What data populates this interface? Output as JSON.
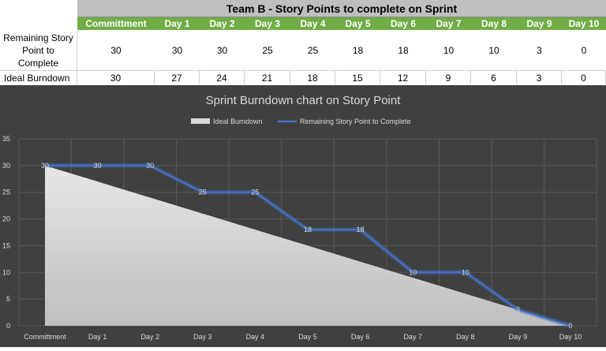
{
  "table": {
    "title": "Team B - Story Points to complete on Sprint",
    "headers": [
      "Committment",
      "Day 1",
      "Day 2",
      "Day 3",
      "Day 4",
      "Day 5",
      "Day 6",
      "Day 7",
      "Day 8",
      "Day 9",
      "Day 10"
    ],
    "rows": [
      {
        "label": "Remaining Story Point to Complete",
        "values": [
          "30",
          "30",
          "30",
          "25",
          "25",
          "18",
          "18",
          "10",
          "10",
          "3",
          "0"
        ]
      },
      {
        "label": "Ideal Burndown",
        "values": [
          "30",
          "27",
          "24",
          "21",
          "18",
          "15",
          "12",
          "9",
          "6",
          "3",
          "0"
        ]
      }
    ]
  },
  "chart_data": {
    "type": "line",
    "title": "Sprint Burndown chart on Story Point",
    "categories": [
      "Committment",
      "Day 1",
      "Day 2",
      "Day 3",
      "Day 4",
      "Day 5",
      "Day 6",
      "Day 7",
      "Day 8",
      "Day 9",
      "Day 10"
    ],
    "series": [
      {
        "name": "Ideal Burndown",
        "kind": "area",
        "values": [
          30,
          27,
          24,
          21,
          18,
          15,
          12,
          9,
          6,
          3,
          0
        ],
        "color": "#d9d9d9"
      },
      {
        "name": "Remaining Story Point to Complete",
        "kind": "line",
        "values": [
          30,
          30,
          30,
          25,
          25,
          18,
          18,
          10,
          10,
          3,
          0
        ],
        "color": "#4472c4"
      }
    ],
    "ylim": [
      0,
      35
    ],
    "yticks": [
      "0",
      "5",
      "10",
      "15",
      "20",
      "25",
      "30",
      "35"
    ],
    "grid": true,
    "legend_position": "top",
    "background": "#404040"
  }
}
